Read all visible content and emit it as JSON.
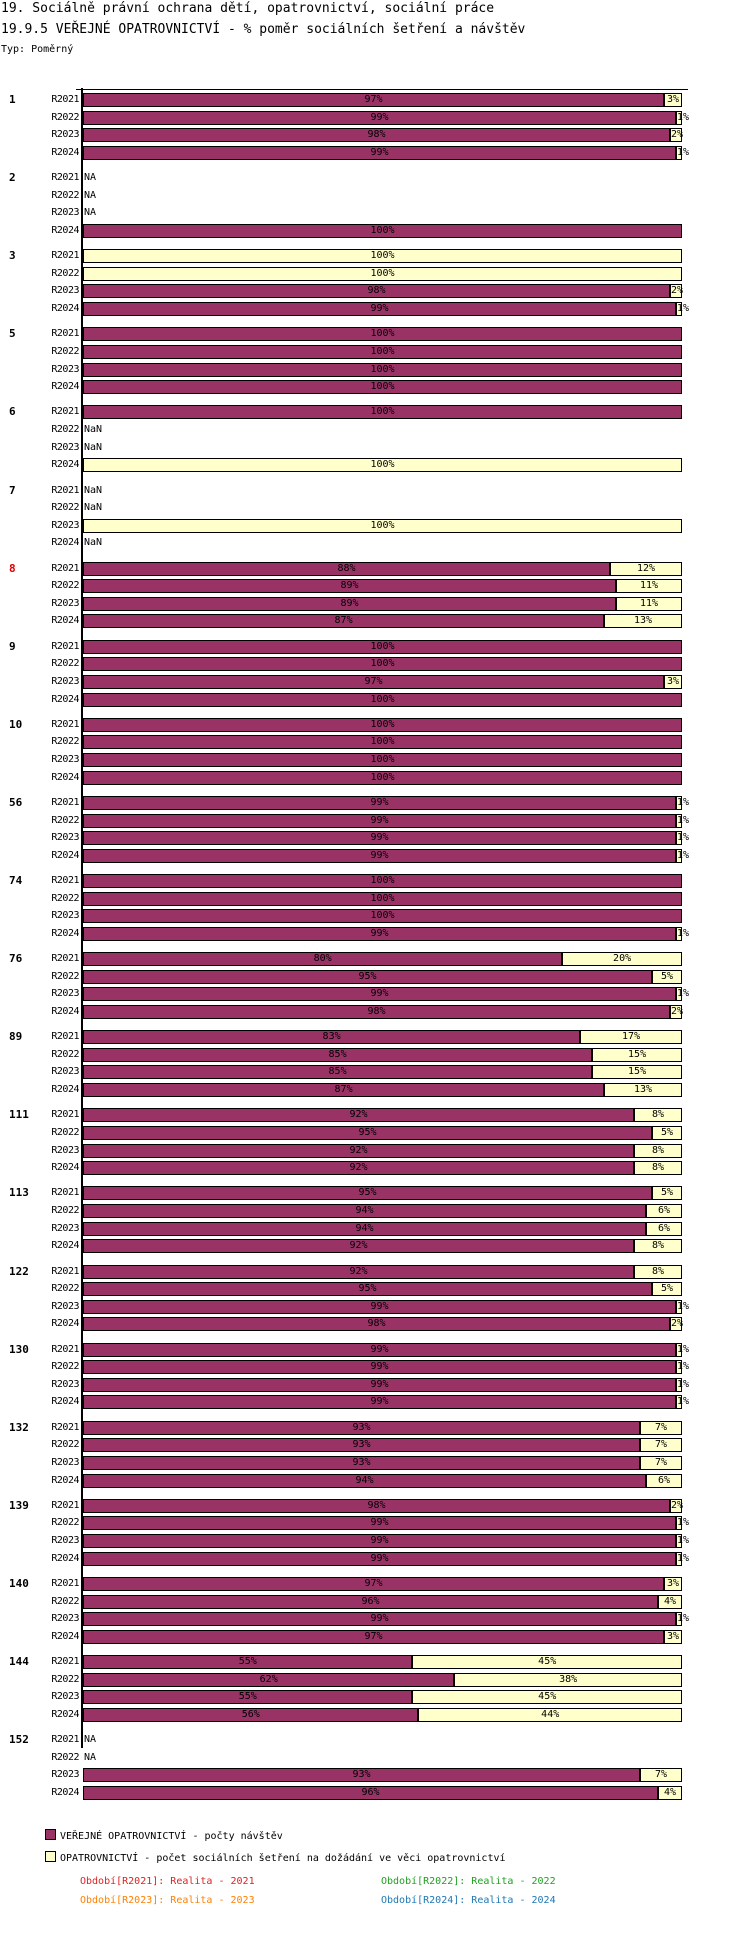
{
  "header": {
    "title": "19. Sociálně právní ochrana dětí, opatrovnictví, sociální práce",
    "subtitle": "19.9.5 VEŘEJNÉ OPATROVNICTVÍ - % poměr sociálních šetření a návštěv",
    "type_label": "Typ: Poměrný"
  },
  "chart_data": {
    "type": "bar",
    "orientation": "horizontal-stacked-percent",
    "series": [
      {
        "name": "VEŘEJNÉ OPATROVNICTVÍ - počty návštěv",
        "color": "#993366"
      },
      {
        "name": "OPATROVNICTVÍ - počet sociálních šetření na dožádání ve věci opatrovnictví",
        "color": "#ffffcc"
      }
    ],
    "periods": [
      "R2021",
      "R2022",
      "R2023",
      "R2024"
    ],
    "groups": [
      {
        "label": "1",
        "rows": [
          [
            97,
            3
          ],
          [
            99,
            1
          ],
          [
            98,
            2
          ],
          [
            99,
            1
          ]
        ]
      },
      {
        "label": "2",
        "rows": [
          "NA",
          "NA",
          "NA",
          [
            100,
            0
          ]
        ]
      },
      {
        "label": "3",
        "rows": [
          [
            0,
            100
          ],
          [
            0,
            100
          ],
          [
            98,
            2
          ],
          [
            99,
            1
          ]
        ]
      },
      {
        "label": "5",
        "rows": [
          [
            100,
            0
          ],
          [
            100,
            0
          ],
          [
            100,
            0
          ],
          [
            100,
            0
          ]
        ]
      },
      {
        "label": "6",
        "rows": [
          [
            100,
            0
          ],
          "NaN",
          "NaN",
          [
            0,
            100
          ]
        ]
      },
      {
        "label": "7",
        "rows": [
          "NaN",
          "NaN",
          [
            0,
            100
          ],
          "NaN"
        ]
      },
      {
        "label": "8",
        "highlight": "#dd0000",
        "rows": [
          [
            88,
            12
          ],
          [
            89,
            11
          ],
          [
            89,
            11
          ],
          [
            87,
            13
          ]
        ]
      },
      {
        "label": "9",
        "rows": [
          [
            100,
            0
          ],
          [
            100,
            0
          ],
          [
            97,
            3
          ],
          [
            100,
            0
          ]
        ]
      },
      {
        "label": "10",
        "rows": [
          [
            100,
            0
          ],
          [
            100,
            0
          ],
          [
            100,
            0
          ],
          [
            100,
            0
          ]
        ]
      },
      {
        "label": "56",
        "rows": [
          [
            99,
            1
          ],
          [
            99,
            1
          ],
          [
            99,
            1
          ],
          [
            99,
            1
          ]
        ]
      },
      {
        "label": "74",
        "rows": [
          [
            100,
            0
          ],
          [
            100,
            0
          ],
          [
            100,
            0
          ],
          [
            99,
            1
          ]
        ]
      },
      {
        "label": "76",
        "rows": [
          [
            80,
            20
          ],
          [
            95,
            5
          ],
          [
            99,
            1
          ],
          [
            98,
            2
          ]
        ]
      },
      {
        "label": "89",
        "rows": [
          [
            83,
            17
          ],
          [
            85,
            15
          ],
          [
            85,
            15
          ],
          [
            87,
            13
          ]
        ]
      },
      {
        "label": "111",
        "rows": [
          [
            92,
            8
          ],
          [
            95,
            5
          ],
          [
            92,
            8
          ],
          [
            92,
            8
          ]
        ]
      },
      {
        "label": "113",
        "rows": [
          [
            95,
            5
          ],
          [
            94,
            6
          ],
          [
            94,
            6
          ],
          [
            92,
            8
          ]
        ]
      },
      {
        "label": "122",
        "rows": [
          [
            92,
            8
          ],
          [
            95,
            5
          ],
          [
            99,
            1
          ],
          [
            98,
            2
          ]
        ]
      },
      {
        "label": "130",
        "rows": [
          [
            99,
            1
          ],
          [
            99,
            1
          ],
          [
            99,
            1
          ],
          [
            99,
            1
          ]
        ]
      },
      {
        "label": "132",
        "rows": [
          [
            93,
            7
          ],
          [
            93,
            7
          ],
          [
            93,
            7
          ],
          [
            94,
            6
          ]
        ]
      },
      {
        "label": "139",
        "rows": [
          [
            98,
            2
          ],
          [
            99,
            1
          ],
          [
            99,
            1
          ],
          [
            99,
            1
          ]
        ]
      },
      {
        "label": "140",
        "rows": [
          [
            97,
            3
          ],
          [
            96,
            4
          ],
          [
            99,
            1
          ],
          [
            97,
            3
          ]
        ]
      },
      {
        "label": "144",
        "rows": [
          [
            55,
            45
          ],
          [
            62,
            38
          ],
          [
            55,
            45
          ],
          [
            56,
            44
          ]
        ]
      },
      {
        "label": "152",
        "rows": [
          "NA",
          "NA",
          [
            93,
            7
          ],
          [
            96,
            4
          ]
        ]
      }
    ],
    "xlim": [
      0,
      100
    ]
  },
  "legend": {
    "series": [
      "VEŘEJNÉ OPATROVNICTVÍ - počty návštěv",
      "OPATROVNICTVÍ - počet sociálních šetření na dožádání ve věci opatrovnictví"
    ],
    "periods": [
      {
        "text": "Období[R2021]: Realita - 2021",
        "color": "#dd2222"
      },
      {
        "text": "Období[R2022]: Realita - 2022",
        "color": "#22a022"
      },
      {
        "text": "Období[R2023]: Realita - 2023",
        "color": "#ff8000"
      },
      {
        "text": "Období[R2024]: Realita - 2024",
        "color": "#1f77b4"
      }
    ]
  }
}
